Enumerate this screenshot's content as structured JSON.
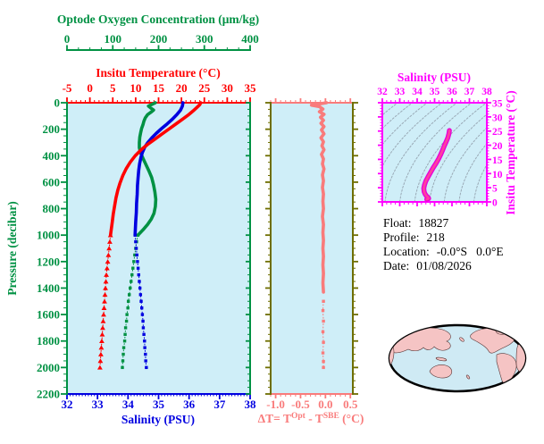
{
  "colors": {
    "green": "#009143",
    "red": "#ff0000",
    "blue": "#0000e0",
    "salmon": "#f97b7b",
    "olive": "#6e6e00",
    "magenta": "#ff00ff",
    "pink_curve": "#ff3fa0",
    "pink_casing": "#e800d8",
    "contour": "#9aaab6",
    "plot_bg": "#cfeef8",
    "map_land": "#f5c4c4",
    "map_ocean": "#cfeaf4",
    "map_outline": "#000000",
    "text": "#000000"
  },
  "info": {
    "rows": [
      {
        "label": "Float:",
        "value": "18827"
      },
      {
        "label": "Profile:",
        "value": "218"
      },
      {
        "label": "Location:",
        "value": "-0.0°S   0.0°E"
      },
      {
        "label": "Date:",
        "value": "01/08/2026"
      }
    ]
  },
  "chart_data": [
    {
      "type": "line",
      "name": "profile-panel",
      "y_axis": {
        "label": "Pressure (decibar)",
        "range": [
          0,
          2200
        ],
        "tick_values": [
          0,
          200,
          400,
          600,
          800,
          1000,
          1200,
          1400,
          1600,
          1800,
          2000,
          2200
        ],
        "tick_labels": [
          "0",
          "200",
          "400",
          "600",
          "800",
          "1000",
          "1200",
          "1400",
          "1600",
          "1800",
          "2000",
          "2200"
        ],
        "minor_step": 50,
        "color_key": "green"
      },
      "x_axes": [
        {
          "id": "oxygen",
          "label": "Optode Oxygen Concentration (μm/kg)",
          "range": [
            0,
            400
          ],
          "tick_values": [
            0,
            100,
            200,
            300,
            400
          ],
          "tick_labels": [
            "0",
            "100",
            "200",
            "300",
            "400"
          ],
          "minor_step": 25,
          "color_key": "green"
        },
        {
          "id": "temperature",
          "label": "Insitu Temperature (°C)",
          "range": [
            -5,
            35
          ],
          "tick_values": [
            -5,
            0,
            5,
            10,
            15,
            20,
            25,
            30,
            35
          ],
          "tick_labels": [
            "-5",
            "0",
            "5",
            "10",
            "15",
            "20",
            "25",
            "30",
            "35"
          ],
          "minor_step": 1,
          "color_key": "red"
        },
        {
          "id": "salinity",
          "label": "Salinity (PSU)",
          "range": [
            32,
            38
          ],
          "tick_values": [
            32,
            33,
            34,
            35,
            36,
            37,
            38
          ],
          "tick_labels": [
            "32",
            "33",
            "34",
            "35",
            "36",
            "37",
            "38"
          ],
          "minor_step": 0.1,
          "color_key": "blue"
        }
      ],
      "series": [
        {
          "name": "oxygen-profile",
          "axis": "oxygen",
          "color_key": "green",
          "marker": "square",
          "solid": [
            [
              193,
              0
            ],
            [
              186,
              12
            ],
            [
              178,
              25
            ],
            [
              183,
              40
            ],
            [
              189,
              55
            ],
            [
              184,
              70
            ],
            [
              176,
              90
            ],
            [
              171,
              115
            ],
            [
              168,
              140
            ],
            [
              166,
              165
            ],
            [
              163,
              195
            ],
            [
              161,
              225
            ],
            [
              159,
              260
            ],
            [
              158,
              300
            ],
            [
              158,
              340
            ],
            [
              161,
              380
            ],
            [
              166,
              420
            ],
            [
              172,
              465
            ],
            [
              179,
              515
            ],
            [
              185,
              565
            ],
            [
              189,
              620
            ],
            [
              192,
              675
            ],
            [
              194,
              730
            ],
            [
              193,
              785
            ],
            [
              190,
              835
            ],
            [
              184,
              880
            ],
            [
              176,
              920
            ],
            [
              166,
              960
            ],
            [
              155,
              1000
            ]
          ],
          "dotted": [
            [
              155,
              1000
            ],
            [
              152,
              1050
            ],
            [
              150,
              1100
            ],
            [
              148,
              1150
            ],
            [
              146,
              1200
            ],
            [
              144,
              1250
            ],
            [
              142,
              1300
            ],
            [
              140,
              1350
            ],
            [
              138,
              1400
            ],
            [
              136,
              1450
            ],
            [
              134,
              1500
            ],
            [
              133,
              1550
            ],
            [
              131,
              1600
            ],
            [
              130,
              1650
            ],
            [
              128,
              1700
            ],
            [
              127,
              1750
            ],
            [
              126,
              1800
            ],
            [
              124,
              1850
            ],
            [
              123,
              1900
            ],
            [
              122,
              1950
            ],
            [
              121,
              2000
            ]
          ]
        },
        {
          "name": "salinity-profile",
          "axis": "salinity",
          "color_key": "blue",
          "marker": "square",
          "solid": [
            [
              35.8,
              0
            ],
            [
              35.78,
              25
            ],
            [
              35.72,
              55
            ],
            [
              35.6,
              90
            ],
            [
              35.45,
              125
            ],
            [
              35.28,
              160
            ],
            [
              35.1,
              195
            ],
            [
              34.93,
              230
            ],
            [
              34.78,
              265
            ],
            [
              34.65,
              300
            ],
            [
              34.55,
              335
            ],
            [
              34.47,
              375
            ],
            [
              34.42,
              415
            ],
            [
              34.38,
              460
            ],
            [
              34.35,
              510
            ],
            [
              34.33,
              565
            ],
            [
              34.31,
              625
            ],
            [
              34.3,
              690
            ],
            [
              34.28,
              760
            ],
            [
              34.27,
              830
            ],
            [
              34.25,
              900
            ],
            [
              34.23,
              1000
            ]
          ],
          "dotted": [
            [
              34.23,
              1000
            ],
            [
              34.25,
              1050
            ],
            [
              34.27,
              1100
            ],
            [
              34.29,
              1150
            ],
            [
              34.31,
              1200
            ],
            [
              34.33,
              1250
            ],
            [
              34.35,
              1300
            ],
            [
              34.37,
              1350
            ],
            [
              34.39,
              1400
            ],
            [
              34.41,
              1450
            ],
            [
              34.43,
              1500
            ],
            [
              34.45,
              1550
            ],
            [
              34.47,
              1600
            ],
            [
              34.49,
              1650
            ],
            [
              34.5,
              1700
            ],
            [
              34.52,
              1750
            ],
            [
              34.54,
              1800
            ],
            [
              34.55,
              1850
            ],
            [
              34.57,
              1900
            ],
            [
              34.58,
              1950
            ],
            [
              34.6,
              2000
            ]
          ]
        },
        {
          "name": "temperature-profile",
          "axis": "temperature",
          "color_key": "red",
          "marker": "triangle",
          "solid": [
            [
              24.2,
              0
            ],
            [
              24.0,
              15
            ],
            [
              23.4,
              35
            ],
            [
              22.6,
              60
            ],
            [
              21.6,
              90
            ],
            [
              20.4,
              120
            ],
            [
              19.0,
              155
            ],
            [
              17.4,
              195
            ],
            [
              15.8,
              235
            ],
            [
              14.2,
              275
            ],
            [
              12.6,
              315
            ],
            [
              11.2,
              355
            ],
            [
              9.9,
              400
            ],
            [
              8.8,
              450
            ],
            [
              7.9,
              500
            ],
            [
              7.2,
              550
            ],
            [
              6.6,
              605
            ],
            [
              6.1,
              660
            ],
            [
              5.7,
              720
            ],
            [
              5.4,
              780
            ],
            [
              5.1,
              840
            ],
            [
              4.9,
              900
            ],
            [
              4.7,
              950
            ],
            [
              4.5,
              1000
            ]
          ],
          "dotted": [
            [
              4.5,
              1000
            ],
            [
              4.35,
              1050
            ],
            [
              4.2,
              1100
            ],
            [
              4.05,
              1150
            ],
            [
              3.9,
              1200
            ],
            [
              3.75,
              1250
            ],
            [
              3.6,
              1300
            ],
            [
              3.5,
              1350
            ],
            [
              3.4,
              1400
            ],
            [
              3.3,
              1450
            ],
            [
              3.2,
              1500
            ],
            [
              3.1,
              1550
            ],
            [
              3.0,
              1600
            ],
            [
              2.9,
              1650
            ],
            [
              2.8,
              1700
            ],
            [
              2.7,
              1750
            ],
            [
              2.6,
              1800
            ],
            [
              2.5,
              1850
            ],
            [
              2.4,
              1900
            ],
            [
              2.3,
              1950
            ],
            [
              2.2,
              2000
            ]
          ]
        }
      ]
    },
    {
      "type": "line",
      "name": "delta-t-panel",
      "x_axis": {
        "label_parts": [
          "ΔT= T",
          "Opt",
          " - T",
          "SBE",
          " (°C)"
        ],
        "range": [
          -1.1,
          0.55
        ],
        "tick_values": [
          -1.0,
          -0.5,
          0.0,
          0.5
        ],
        "tick_labels": [
          "-1.0",
          "-0.5",
          "0.0",
          "0.5"
        ],
        "minor_step": 0.1,
        "color_key": "salmon"
      },
      "y_axis": {
        "range": [
          0,
          2200
        ],
        "tick_values": [
          0,
          200,
          400,
          600,
          800,
          1000,
          1200,
          1400,
          1600,
          1800,
          2000,
          2200
        ],
        "tick_labels": null,
        "minor_step": 50,
        "color_key": "olive"
      },
      "series": [
        {
          "name": "temperature-difference",
          "color_key": "salmon",
          "marker": "square",
          "solid": [
            [
              0.02,
              0
            ],
            [
              -0.28,
              18
            ],
            [
              -0.12,
              30
            ],
            [
              -0.05,
              48
            ],
            [
              -0.12,
              68
            ],
            [
              -0.03,
              88
            ],
            [
              -0.1,
              110
            ],
            [
              -0.04,
              132
            ],
            [
              -0.09,
              155
            ],
            [
              -0.03,
              180
            ],
            [
              -0.08,
              205
            ],
            [
              -0.03,
              235
            ],
            [
              -0.09,
              265
            ],
            [
              -0.04,
              295
            ],
            [
              -0.07,
              325
            ],
            [
              -0.03,
              355
            ],
            [
              -0.08,
              390
            ],
            [
              -0.04,
              425
            ],
            [
              -0.06,
              462
            ],
            [
              -0.03,
              500
            ],
            [
              -0.06,
              545
            ],
            [
              -0.04,
              590
            ],
            [
              -0.06,
              640
            ],
            [
              -0.04,
              690
            ],
            [
              -0.05,
              745
            ],
            [
              -0.04,
              800
            ],
            [
              -0.06,
              860
            ],
            [
              -0.04,
              920
            ],
            [
              -0.05,
              980
            ],
            [
              -0.04,
              1040
            ],
            [
              -0.05,
              1100
            ],
            [
              -0.04,
              1160
            ],
            [
              -0.05,
              1225
            ],
            [
              -0.04,
              1290
            ],
            [
              -0.05,
              1360
            ],
            [
              -0.04,
              1430
            ]
          ],
          "dotted": [
            [
              -0.04,
              1500
            ],
            [
              -0.05,
              1570
            ],
            [
              -0.04,
              1650
            ],
            [
              -0.05,
              1730
            ],
            [
              -0.04,
              1810
            ],
            [
              -0.05,
              1890
            ],
            [
              -0.04,
              1955
            ],
            [
              -0.04,
              2000
            ]
          ]
        }
      ]
    },
    {
      "type": "line",
      "name": "ts-diagram-panel",
      "x_axis": {
        "label": "Salinity (PSU)",
        "range": [
          32,
          38
        ],
        "tick_values": [
          32,
          33,
          34,
          35,
          36,
          37,
          38
        ],
        "tick_labels": [
          "32",
          "33",
          "34",
          "35",
          "36",
          "37",
          "38"
        ],
        "minor_step": 0.25,
        "color_key": "magenta"
      },
      "y_axis": {
        "label": "Insitu Temperature (°C)",
        "range": [
          0,
          35
        ],
        "tick_values": [
          0,
          5,
          10,
          15,
          20,
          25,
          30,
          35
        ],
        "tick_labels": [
          "0",
          "5",
          "10",
          "15",
          "20",
          "25",
          "30",
          "35"
        ],
        "minor_step": 1,
        "color_key": "magenta"
      },
      "background_contours": {
        "description": "density isopycnal curves",
        "color_key": "contour"
      },
      "series": [
        {
          "name": "t-s-profile",
          "color_key": "pink_curve",
          "points": [
            [
              35.85,
              25.2
            ],
            [
              35.82,
              24.0
            ],
            [
              35.76,
              22.6
            ],
            [
              35.66,
              21.2
            ],
            [
              35.56,
              19.8
            ],
            [
              35.46,
              18.3
            ],
            [
              35.36,
              16.8
            ],
            [
              35.23,
              15.2
            ],
            [
              35.08,
              13.6
            ],
            [
              34.92,
              12.0
            ],
            [
              34.77,
              10.4
            ],
            [
              34.62,
              8.8
            ],
            [
              34.5,
              7.4
            ],
            [
              34.42,
              6.0
            ],
            [
              34.38,
              4.8
            ],
            [
              34.4,
              3.6
            ],
            [
              34.46,
              2.7
            ],
            [
              34.55,
              2.0
            ],
            [
              34.63,
              1.6
            ],
            [
              34.66,
              1.2
            ],
            [
              34.55,
              0.9
            ]
          ]
        }
      ]
    }
  ],
  "map": {
    "description": "Pacific-centered world map"
  }
}
